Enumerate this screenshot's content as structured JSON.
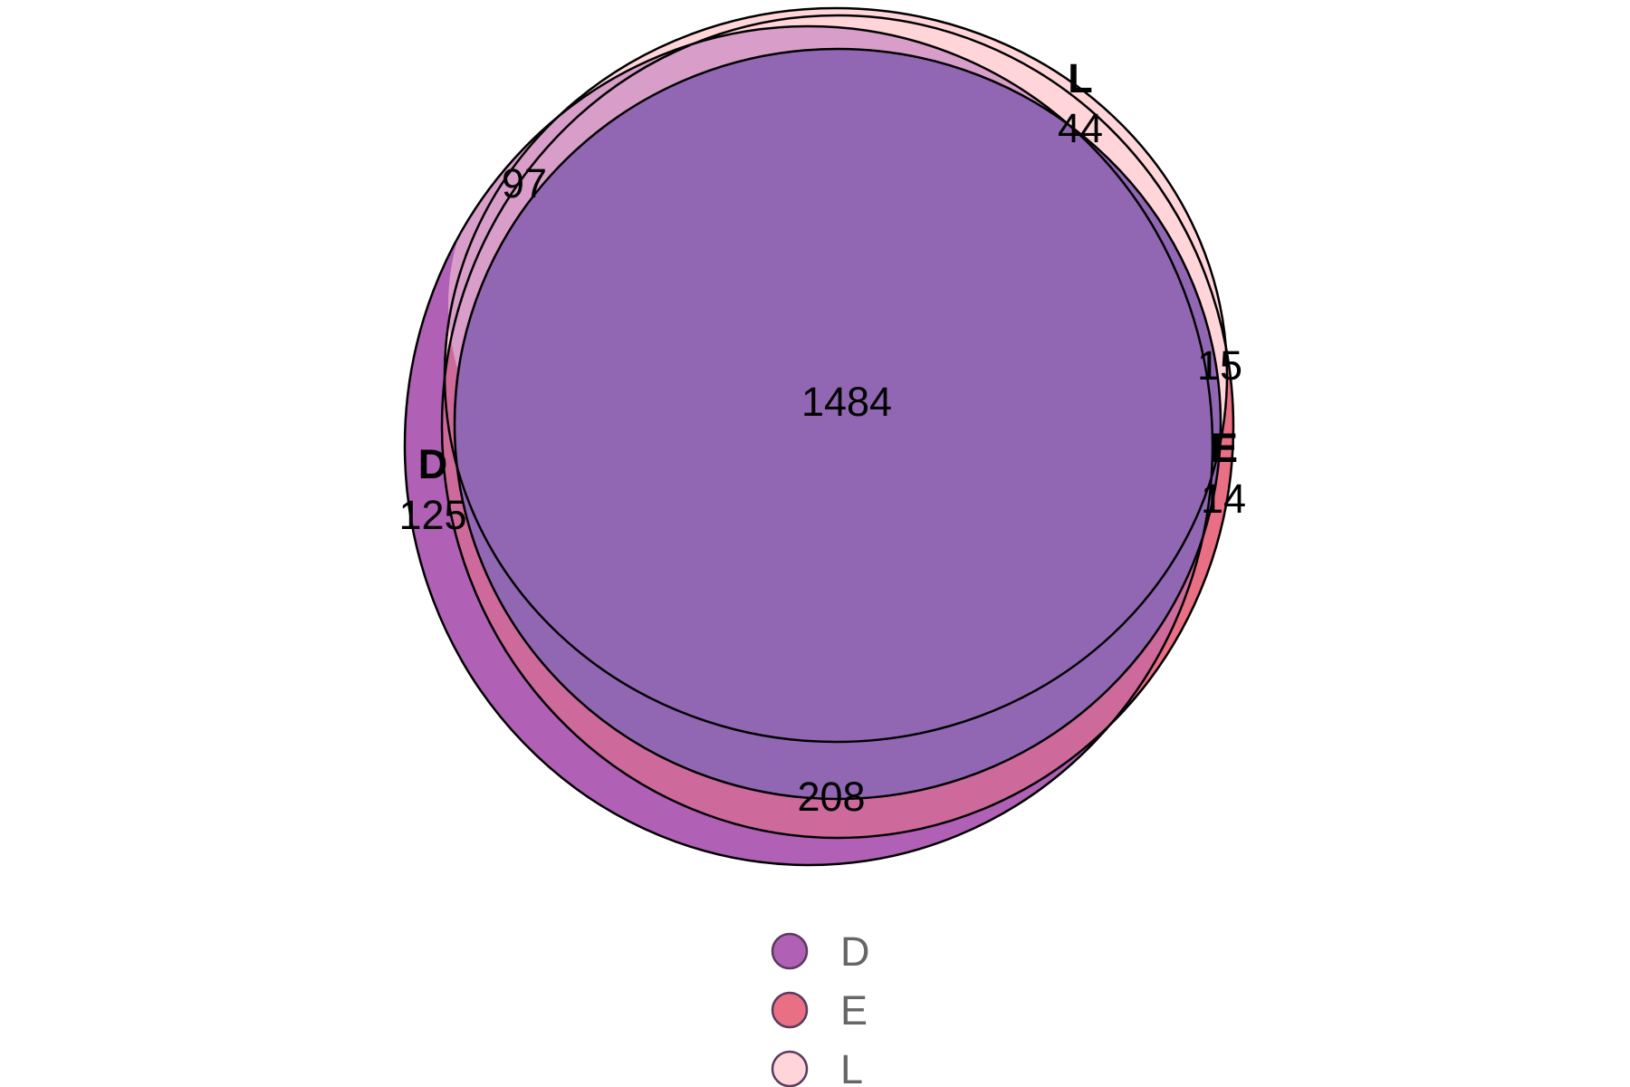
{
  "sets": [
    {
      "name": "D",
      "color": "#b060b5",
      "outer_count": "125"
    },
    {
      "name": "E",
      "color": "#e86f84",
      "outer_count": "14"
    },
    {
      "name": "L",
      "color": "#ffd5da",
      "outer_count": "44"
    }
  ],
  "regions": {
    "D_L": "97",
    "E_L": "15",
    "D_E_L": "1484",
    "D_E": "208"
  },
  "colors": {
    "overlap_all": "#9167b3",
    "overlap_D_E": "#cd6a9b",
    "overlap_D_L": "#d99dc9",
    "overlap_E_L": "#f3a6b4",
    "stroke": "#000000",
    "legend_text": "#666666"
  },
  "legend": {
    "items": [
      {
        "label": "D",
        "color": "#b060b5"
      },
      {
        "label": "E",
        "color": "#e86f84"
      },
      {
        "label": "L",
        "color": "#ffd5da"
      }
    ]
  }
}
